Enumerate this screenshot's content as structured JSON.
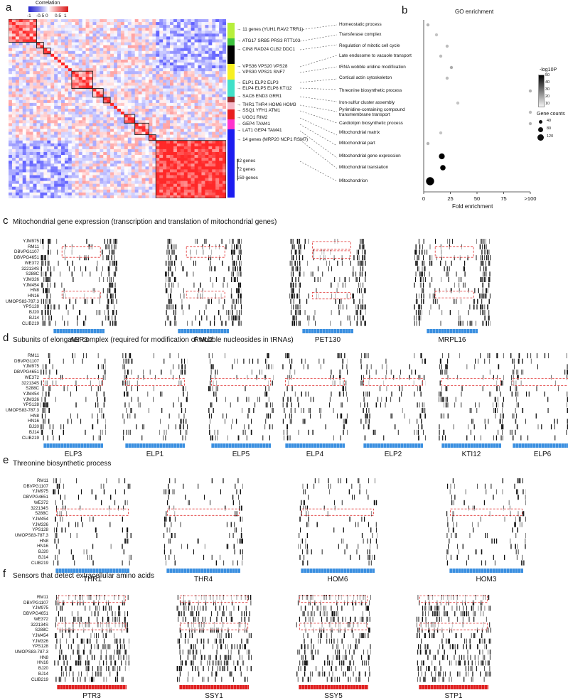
{
  "panel_a": {
    "letter": "a",
    "colorbar_title": "Correlation",
    "colorbar_ticks": [
      "-1",
      "-0.5",
      "0",
      "0.5",
      "1"
    ],
    "clusters": [
      {
        "label": "11 genes (YUH1  RAV2  TRR1)",
        "color": "#b7ef3c"
      },
      {
        "label": "ATG17  SRB5  PRS3  RTT103",
        "color": "#3ec23e"
      },
      {
        "label": "CIN8  RAD24  CLB2  DDC1",
        "color": "#000000"
      },
      {
        "label": "VPS36  VPS20  VPS28",
        "color": "#f7ef21"
      },
      {
        "label": "VPS30  VPS21  SNF7",
        "color": "#f7ef21"
      },
      {
        "label": "ELP1  ELP2  ELP3",
        "color": "#40e0c8"
      },
      {
        "label": "ELP4  ELP5  ELP6  KTI12",
        "color": "#40e0c8"
      },
      {
        "label": "SAC6  END3  GRR1",
        "color": "#9b2a2a"
      },
      {
        "label": "THR1  THR4  HOM6  HOM3",
        "color": "#f5b7c8"
      },
      {
        "label": "SSQ1  YFH1  ATM1",
        "color": "#e81e1e"
      },
      {
        "label": "UGO1  RIM2",
        "color": "#e81e1e"
      },
      {
        "label": "GEP4  TAM41",
        "color": "#ff33cc"
      },
      {
        "label": "LAT1  GEP4  TAM41",
        "color": "#ff33cc"
      },
      {
        "label": "14 genes (MRP20 NCP1 RSM7)",
        "color": "#1c1cf0"
      },
      {
        "label": "82 genes",
        "color": "#1c1cf0"
      },
      {
        "label": "72 genes",
        "color": "#1c1cf0"
      },
      {
        "label": "159 genes",
        "color": "#1c1cf0"
      }
    ]
  },
  "panel_b": {
    "letter": "b",
    "title": "GO enrichment",
    "xlabel": "Fold enrichment",
    "legend_color_title": "-log10P",
    "legend_color_ticks": [
      "50",
      "40",
      "30",
      "20",
      "10"
    ],
    "legend_size_title": "Gene counts",
    "legend_size_ticks": [
      "40",
      "80",
      "120"
    ]
  },
  "chart_data": {
    "type": "scatter",
    "title": "GO enrichment",
    "xlabel": "Fold enrichment",
    "ylabel": "",
    "x_ticks": [
      "0",
      "25",
      "50",
      "75",
      ">100"
    ],
    "xlim": [
      0,
      100
    ],
    "categories": [
      "Homeostatic process",
      "Transferase complex",
      "Regulation of mitotic cell cycle",
      "Late endosome to vacuole transport",
      "tRNA wobble uridine modification",
      "Cortical actin cytoskeleton",
      "Threonine biosynthetic process",
      "Iron-sulfur cluster assembly",
      "Pyrimidine-containing compound transmembrane transport",
      "Cardiolipin biosynthetic process",
      "Mitochondrial matrix",
      "Mitochondrial part",
      "Mitochondrial gene expression",
      "Mitochondrial translation",
      "Mitochondrion"
    ],
    "fold_enrichment": [
      4,
      12,
      22,
      16,
      26,
      22,
      100,
      32,
      100,
      100,
      16,
      4,
      17,
      18,
      6
    ],
    "neg_log10_p": [
      12,
      8,
      10,
      10,
      14,
      10,
      12,
      8,
      10,
      12,
      8,
      12,
      55,
      55,
      55
    ],
    "gene_counts": [
      11,
      12,
      8,
      10,
      7,
      6,
      4,
      3,
      2,
      2,
      14,
      20,
      82,
      72,
      159
    ]
  },
  "panel_c": {
    "letter": "c",
    "title": "Mitochondrial gene expression (transcription and translation of mitochondrial genes)",
    "strains": [
      "YJM975",
      "RM11",
      "DBVPG1107",
      "DBVPG4651",
      "WE372",
      "322134S",
      "S288C",
      "YJM326",
      "YJM454",
      "HN8",
      "HN16",
      "UMOPS83-787.3",
      "YPS128",
      "BJ20",
      "BJ14",
      "CLIB219"
    ],
    "genes": [
      "AEP3",
      "RML2",
      "PET130",
      "MRPL16"
    ]
  },
  "panel_d": {
    "letter": "d",
    "title": "Subunits of elongator complex (required for modification of  wobble nucleosides in tRNAs)",
    "strains": [
      "RM11",
      "DBVPG1107",
      "YJM975",
      "DBVPG4651",
      "WE372",
      "322134S",
      "S288C",
      "YJM454",
      "YJM326",
      "YPS128",
      "UMOPS83-787.3",
      "HN8",
      "HN16",
      "BJ20",
      "BJ14",
      "CLIB219"
    ],
    "genes": [
      "ELP3",
      "ELP1",
      "ELP5",
      "ELP4",
      "ELP2",
      "KTI12",
      "ELP6"
    ]
  },
  "panel_e": {
    "letter": "e",
    "title": "Threonine biosynthetic process",
    "strains": [
      "RM11",
      "DBVPG1107",
      "YJM975",
      "DBVPG4651",
      "WE372",
      "322134S",
      "S288C",
      "YJM454",
      "YJM326",
      "YPS128",
      "UMOPS83-787.3",
      "HN8",
      "HN16",
      "BJ20",
      "BJ14",
      "CLIB219"
    ],
    "genes": [
      "THR1",
      "THR4",
      "HOM6",
      "HOM3"
    ]
  },
  "panel_f": {
    "letter": "f",
    "title": "Sensors that detect extracellular amino acids",
    "strains": [
      "RM11",
      "DBVPG1107",
      "YJM975",
      "DBVPG4651",
      "WE372",
      "322134S",
      "S288C",
      "YJM454",
      "YJM326",
      "YPS128",
      "UMOPS83-787.3",
      "HN8",
      "HN16",
      "BJ20",
      "BJ14",
      "CLIB219"
    ],
    "genes": [
      "PTR3",
      "SSY1",
      "SSY5",
      "STP1"
    ]
  },
  "colors": {
    "corr_low": "#3b3bd6",
    "corr_mid": "#ffffff",
    "corr_high": "#e11f1f",
    "gene_bar_blue": "#3a8fe0",
    "gene_bar_red": "#e01f1f",
    "highlight_box": "#e03030"
  }
}
